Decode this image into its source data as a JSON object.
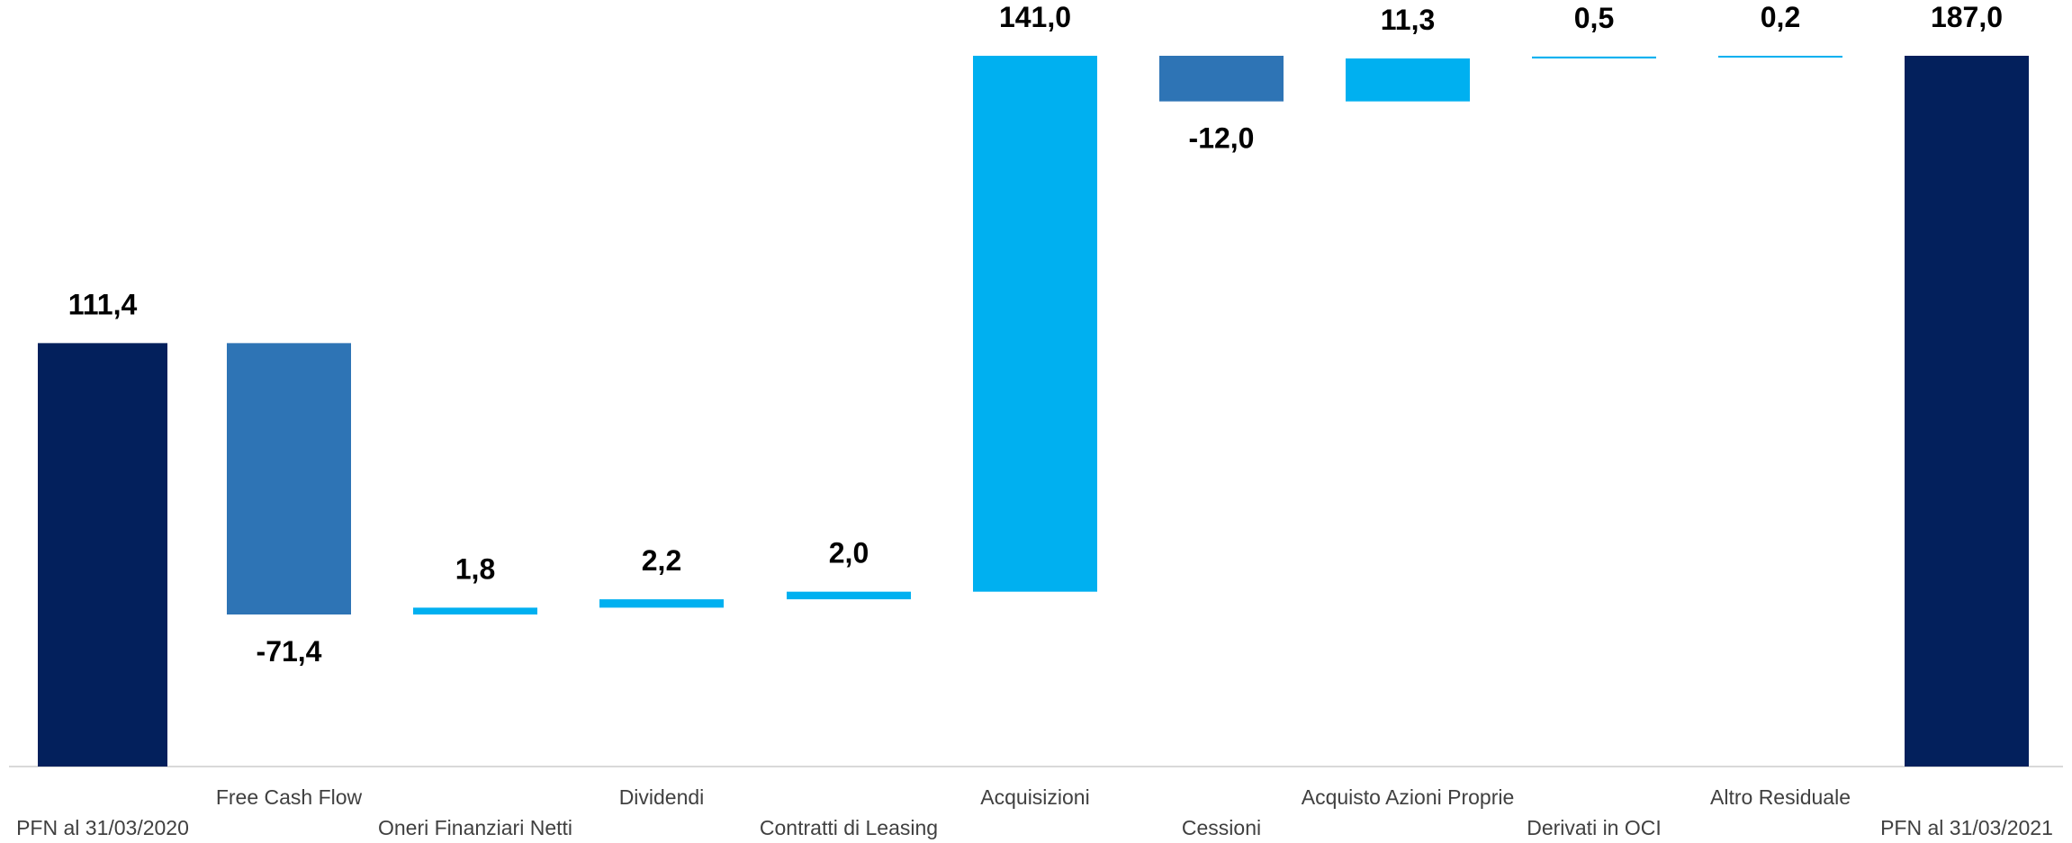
{
  "chart_data": {
    "type": "waterfall",
    "categories": [
      "PFN al 31/03/2020",
      "Free Cash Flow",
      "Oneri Finanziari Netti",
      "Dividendi",
      "Contratti di Leasing",
      "Acquisizioni",
      "Cessioni",
      "Acquisto Azioni Proprie",
      "Derivati in OCI",
      "Altro Residuale",
      "PFN al 31/03/2021"
    ],
    "values": [
      111.4,
      -71.4,
      1.8,
      2.2,
      2.0,
      141.0,
      -12.0,
      11.3,
      0.5,
      0.2,
      187.0
    ],
    "value_labels": [
      "111,4",
      "-71,4",
      "1,8",
      "2,2",
      "2,0",
      "141,0",
      "-12,0",
      "11,3",
      "0,5",
      "0,2",
      "187,0"
    ],
    "kinds": [
      "total",
      "delta",
      "delta",
      "delta",
      "delta",
      "delta",
      "delta",
      "delta",
      "delta",
      "delta",
      "total"
    ],
    "ylim": [
      0,
      187.0
    ],
    "grid": false,
    "legend": "none",
    "colors": {
      "total": "#03205C",
      "decrease": "#2E74B5",
      "increase": "#00B0F0",
      "baseline": "#D9D9D9"
    }
  }
}
